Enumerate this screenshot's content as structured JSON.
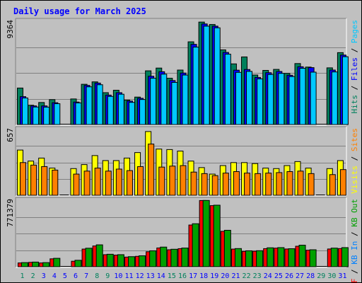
{
  "chart_data": {
    "type": "bar",
    "title": "Daily usage for March 2025",
    "categories": [
      "1",
      "2",
      "3",
      "4",
      "5",
      "6",
      "7",
      "8",
      "9",
      "10",
      "11",
      "12",
      "13",
      "14",
      "15",
      "16",
      "17",
      "18",
      "19",
      "20",
      "21",
      "22",
      "23",
      "24",
      "25",
      "26",
      "27",
      "28",
      "29",
      "30",
      "31"
    ],
    "weekend_days": [
      1,
      2,
      8,
      9,
      15,
      16,
      22,
      23,
      29,
      30
    ],
    "colors": {
      "hits": "#00805C",
      "files": "#0000FF",
      "pages": "#00C8FF",
      "visits": "#FFFF00",
      "sites": "#FF8000",
      "kb_in": "#0080FF",
      "kb_out": "#00A000",
      "kb_f": "#FF0000",
      "title": "#0000FF",
      "weekday_label": "#0000FF",
      "weekend_label": "#00805C"
    },
    "panels": [
      {
        "id": "hits-files-pages",
        "max_label": "9364",
        "max": 9364,
        "right_labels": [
          {
            "text": "Hits",
            "color": "#00805C"
          },
          {
            "text": "Files",
            "color": "#0000FF"
          },
          {
            "text": "Pages",
            "color": "#00C8FF"
          }
        ],
        "series": [
          {
            "name": "Hits",
            "color": "#00805C",
            "values": [
              3340,
              1780,
              2030,
              2290,
              0,
              2350,
              3680,
              3900,
              2920,
              3140,
              2240,
              2520,
              4900,
              5150,
              4230,
              4970,
              7530,
              9320,
              9100,
              6800,
              5530,
              6160,
              4520,
              4940,
              5030,
              4670,
              5560,
              5240,
              0,
              5170,
              6550
            ]
          },
          {
            "name": "Files",
            "color": "#0000FF",
            "values": [
              2560,
              1720,
              1720,
              2010,
              0,
              2070,
              3580,
              3790,
              2700,
              2920,
              2160,
              2410,
              4410,
              4820,
              4020,
              4700,
              7300,
              9150,
              8950,
              6570,
              4960,
              5020,
              4300,
              4730,
              4840,
              4500,
              5270,
              5190,
              0,
              4970,
              6330
            ]
          },
          {
            "name": "Pages",
            "color": "#00C8FF",
            "values": [
              2440,
              1620,
              1610,
              1920,
              0,
              1990,
              3450,
              3640,
              2580,
              2780,
              2040,
              2300,
              4230,
              4600,
              3850,
              4520,
              7050,
              8950,
              8800,
              6410,
              4760,
              4850,
              4170,
              4570,
              4670,
              4380,
              5130,
              4780,
              0,
              4800,
              6180
            ]
          }
        ]
      },
      {
        "id": "visits-sites",
        "max_label": "657",
        "max": 657,
        "right_labels": [
          {
            "text": "Visits",
            "color": "#FFFF00"
          },
          {
            "text": "Sites",
            "color": "#FF8000"
          }
        ],
        "series": [
          {
            "name": "Visits",
            "color": "#FFFF00",
            "values": [
              455,
              345,
              375,
              275,
              0,
              270,
              310,
              400,
              350,
              350,
              375,
              430,
              640,
              465,
              460,
              445,
              345,
              280,
              215,
              300,
              330,
              330,
              320,
              275,
              270,
              300,
              340,
              275,
              0,
              270,
              350
            ]
          },
          {
            "name": "Sites",
            "color": "#FF8000",
            "values": [
              330,
              305,
              290,
              255,
              0,
              215,
              245,
              275,
              245,
              265,
              250,
              290,
              515,
              285,
              295,
              300,
              235,
              220,
              200,
              225,
              240,
              225,
              220,
              225,
              230,
              240,
              245,
              220,
              0,
              210,
              260
            ]
          }
        ]
      },
      {
        "id": "kbytes",
        "max_label": "771379",
        "max": 771379,
        "right_labels": [
          {
            "text": "KB F",
            "color": "#FF0000"
          },
          {
            "text": "KB In",
            "color": "#0080FF"
          },
          {
            "text": "KB Out",
            "color": "#00A000"
          }
        ],
        "series": [
          {
            "name": "KB F",
            "color": "#FF0000",
            "values": [
              48000,
              55000,
              48000,
              96000,
              6000,
              68000,
              209000,
              245000,
              144000,
              139000,
              116000,
              125000,
              178000,
              222000,
              201000,
              214000,
              488000,
              772000,
              713000,
              415000,
              209000,
              182000,
              184000,
              214000,
              220000,
              210000,
              242000,
              196000,
              5000,
              210000,
              215000
            ]
          },
          {
            "name": "KB Out",
            "color": "#00A000",
            "values": [
              52000,
              58000,
              52000,
              102000,
              8000,
              79000,
              219000,
              258000,
              149000,
              144000,
              121000,
              131000,
              189000,
              232000,
              207000,
              221000,
              503000,
              773000,
              718000,
              427000,
              215000,
              189000,
              190000,
              224000,
              226000,
              213000,
              254000,
              201000,
              6000,
              220000,
              226000
            ]
          }
        ]
      }
    ]
  }
}
